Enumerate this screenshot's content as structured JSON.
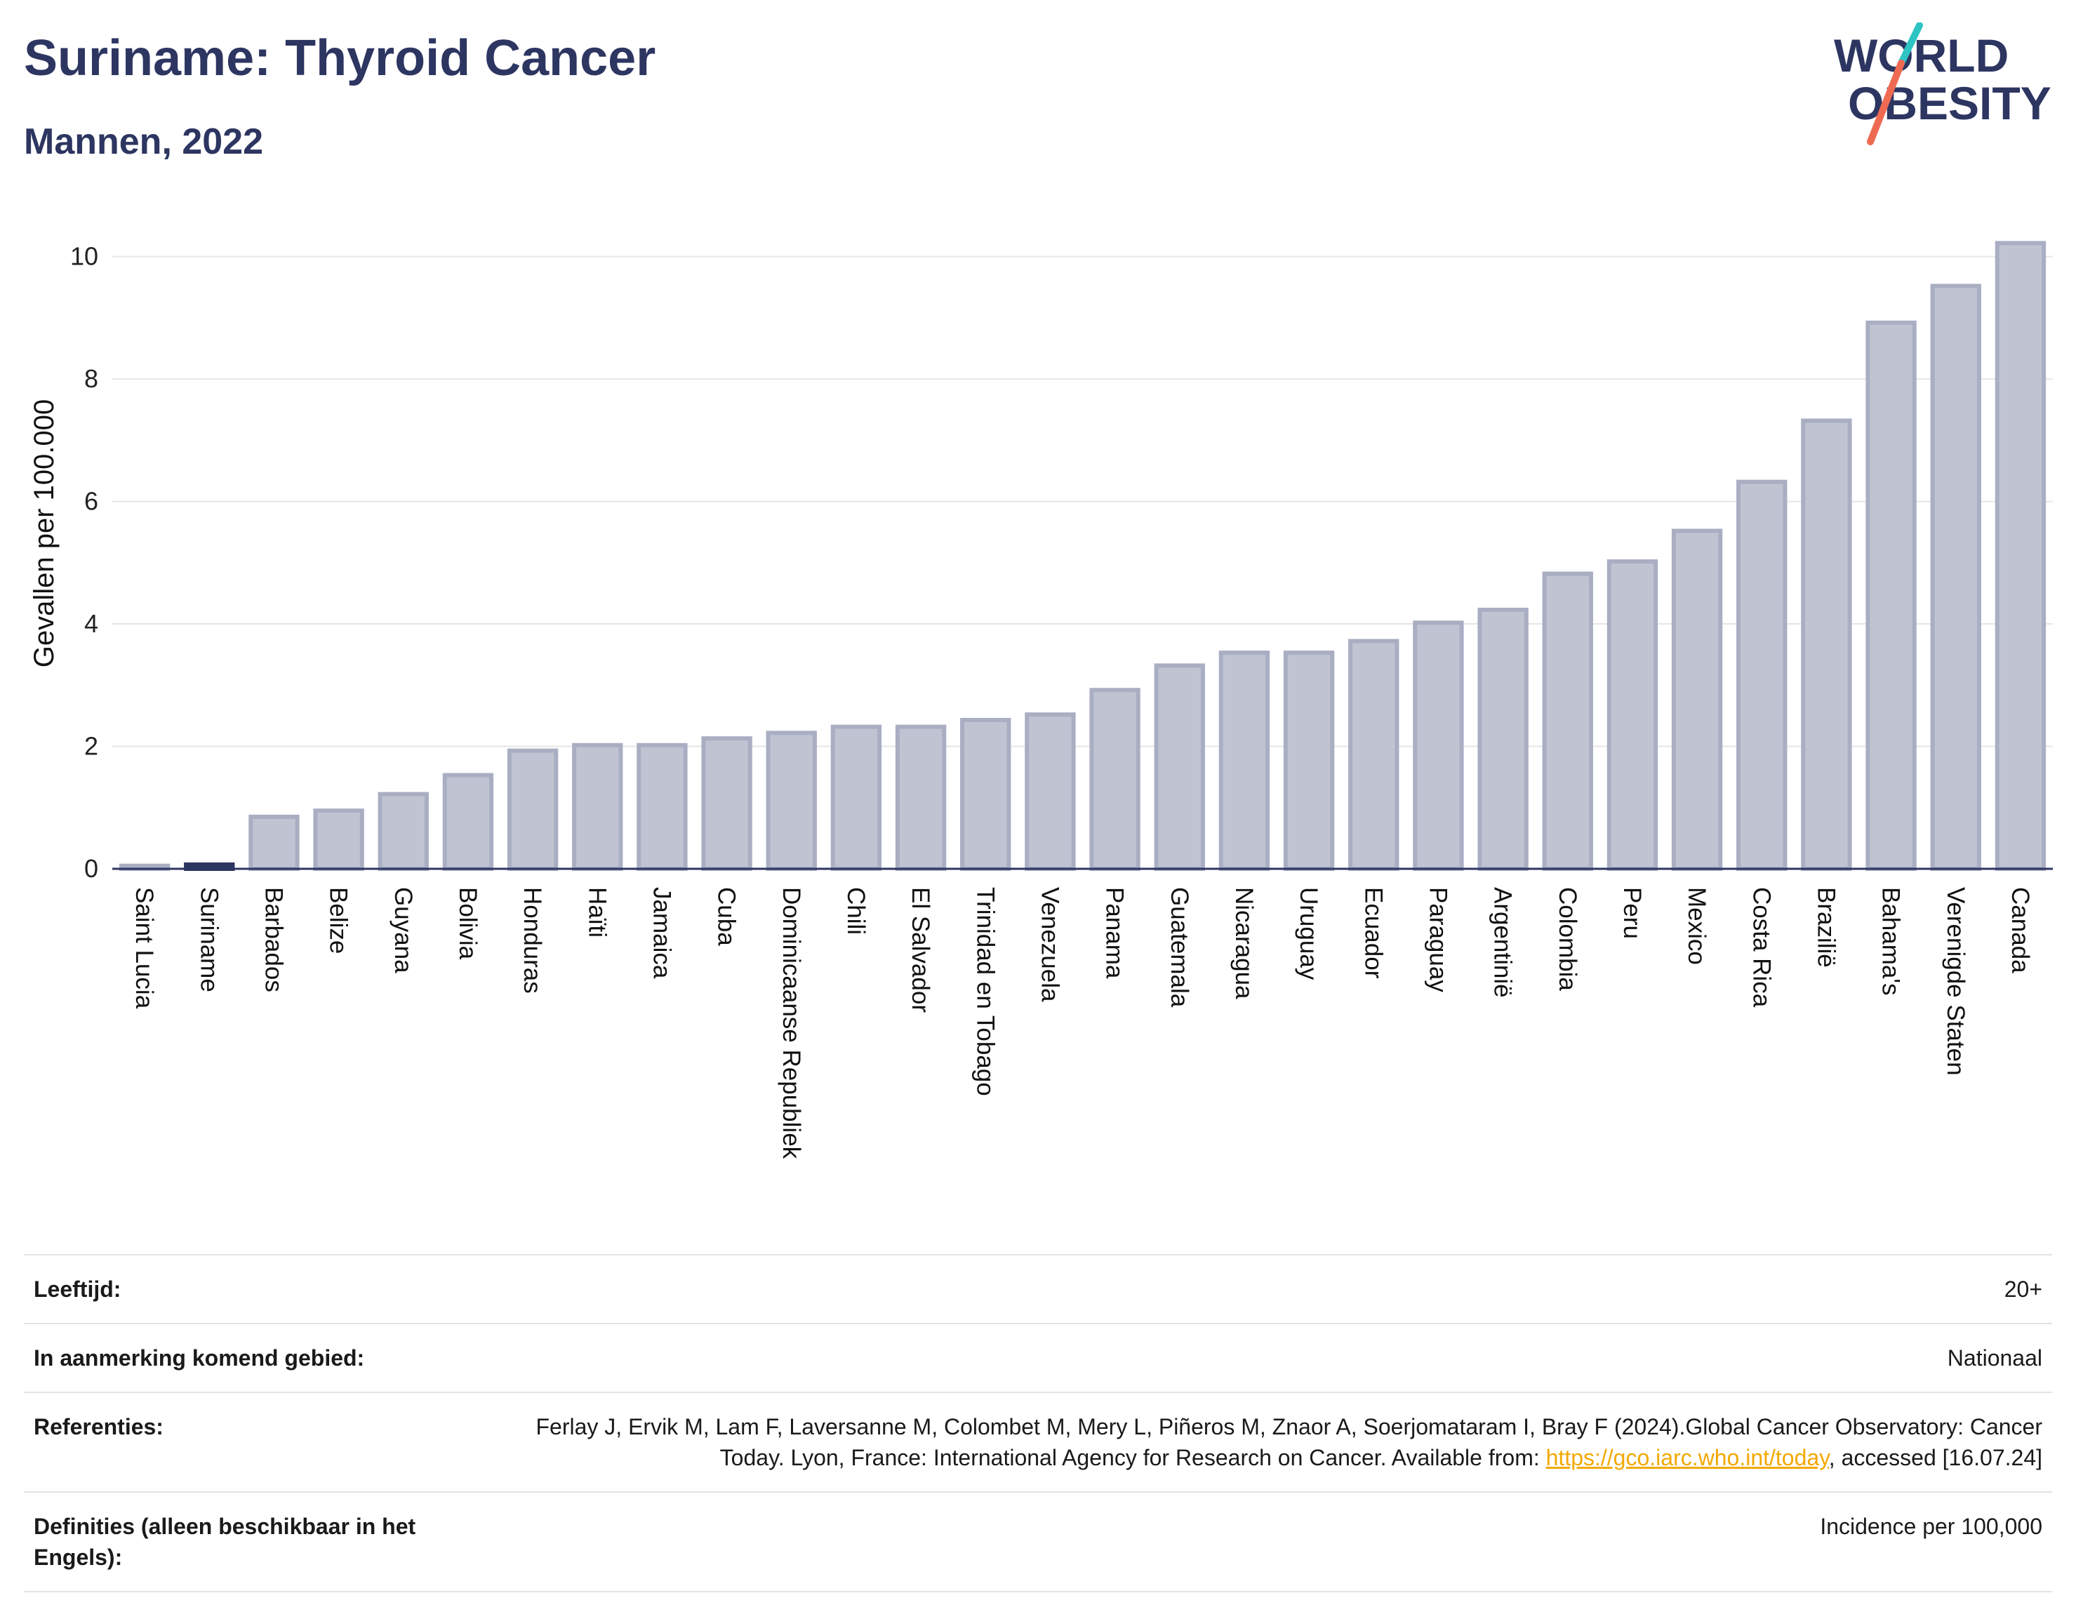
{
  "header": {
    "title": "Suriname: Thyroid Cancer",
    "subtitle": "Mannen, 2022"
  },
  "logo": {
    "line1": "WORLD",
    "line2": "OBESITY",
    "color_text": "#2d3561",
    "color_slash_top": "#2ec4c4",
    "color_slash_bottom": "#ef6a52"
  },
  "chart_data": {
    "type": "bar",
    "ylabel": "Gevallen per 100.000",
    "ylim": [
      0,
      10.5
    ],
    "yticks": [
      0,
      2,
      4,
      6,
      8,
      10
    ],
    "grid": true,
    "highlight": "Suriname",
    "colors": {
      "bar_fill": "#c0c4d2",
      "bar_stroke": "#a9aec3",
      "highlight": "#2d3561",
      "axis": "#2d3561",
      "grid": "#e6e6e6"
    },
    "categories": [
      "Saint Lucia",
      "Suriname",
      "Barbados",
      "Belize",
      "Guyana",
      "Bolivia",
      "Honduras",
      "Haïti",
      "Jamaica",
      "Cuba",
      "Dominicaanse Republiek",
      "Chili",
      "El Salvador",
      "Trinidad en Tobago",
      "Venezuela",
      "Panama",
      "Guatemala",
      "Nicaragua",
      "Uruguay",
      "Ecuador",
      "Paraguay",
      "Argentinië",
      "Colombia",
      "Peru",
      "Mexico",
      "Costa Rica",
      "Brazilië",
      "Bahama's",
      "Verenigde Staten",
      "Canada"
    ],
    "values": [
      0.05,
      0.07,
      0.85,
      0.95,
      1.22,
      1.53,
      1.93,
      2.02,
      2.02,
      2.13,
      2.22,
      2.32,
      2.32,
      2.43,
      2.52,
      2.92,
      3.32,
      3.53,
      3.53,
      3.72,
      4.02,
      4.23,
      4.82,
      5.02,
      5.52,
      6.32,
      7.32,
      8.92,
      9.52,
      10.22
    ]
  },
  "info": {
    "rows": [
      {
        "label": "Leeftijd:",
        "value": "20+"
      },
      {
        "label": "In aanmerking komend gebied:",
        "value": "Nationaal"
      },
      {
        "label": "Referenties:",
        "value_pre": "Ferlay J, Ervik M, Lam F, Laversanne M, Colombet M, Mery L, Piñeros M, Znaor A, Soerjomataram I, Bray F (2024).Global Cancer Observatory: Cancer Today. Lyon, France: International Agency for Research on Cancer. Available from: ",
        "link": "https://gco.iarc.who.int/today",
        "value_post": ", accessed [16.07.24]"
      },
      {
        "label": "Definities (alleen beschikbaar in het Engels):",
        "value": "Incidence per 100,000"
      }
    ]
  }
}
